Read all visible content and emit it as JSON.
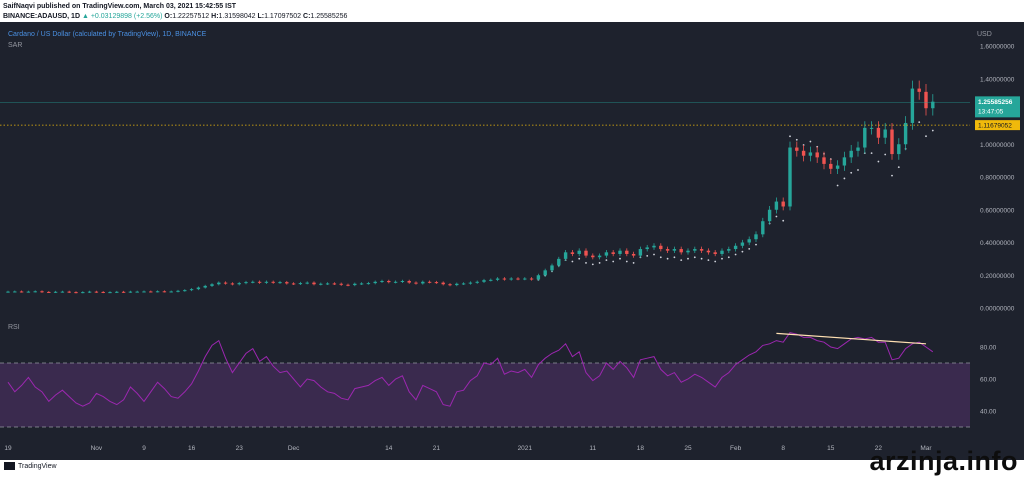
{
  "header": {
    "published_line": "SaifNaqvi published on TradingView.com, March 03, 2021 15:42:55 IST",
    "symbol_line": {
      "symbol": "BINANCE:ADAUSD, 1D",
      "change": "▲ +0.03129898 (+2.56%)",
      "open_label": "O:",
      "open": "1.22257512",
      "high_label": "H:",
      "high": "1.31598042",
      "low_label": "L:",
      "low": "1.17097502",
      "close_label": "C:",
      "close": "1.25585256"
    }
  },
  "legend": {
    "title": "Cardano / US Dollar (calculated by TradingView), 1D, BINANCE",
    "indicator": "SAR",
    "rsi_label": "RSI",
    "currency": "USD"
  },
  "colors": {
    "background": "#1e222d",
    "up": "#26a69a",
    "down": "#ef5350",
    "rsi_line": "#9c27b0",
    "rsi_fill": "#3a2a4e",
    "sar": "#d1d4dc",
    "price_label": "#26a69a",
    "dotted_level": "#f0b90b",
    "trendline": "#ffe0b2"
  },
  "badges": {
    "last_price": "1.25585256",
    "countdown": "13:47:05",
    "level_price": "1.11679052"
  },
  "chart_data": [
    {
      "type": "candlestick",
      "title": "Cardano / US Dollar (calculated by TradingView), 1D, BINANCE",
      "ylabel": "USD",
      "y_ticks": [
        "1.60000000",
        "1.40000000",
        "1.20000000",
        "1.00000000",
        "0.80000000",
        "0.60000000",
        "0.40000000",
        "0.20000000",
        "0.00000000"
      ],
      "ylim": [
        -0.04,
        1.72
      ],
      "x_ticks": [
        "19",
        "Nov",
        "9",
        "16",
        "23",
        "Dec",
        "14",
        "21",
        "2021",
        "11",
        "18",
        "25",
        "Feb",
        "8",
        "15",
        "22",
        "Mar"
      ],
      "dotted_level": 1.11679052,
      "last_close": 1.25585256,
      "series": [
        {
          "name": "ADAUSD",
          "closes": [
            0.1,
            0.101,
            0.099,
            0.1,
            0.102,
            0.098,
            0.097,
            0.099,
            0.1,
            0.097,
            0.095,
            0.097,
            0.1,
            0.098,
            0.096,
            0.097,
            0.099,
            0.098,
            0.1,
            0.1,
            0.101,
            0.1,
            0.102,
            0.1,
            0.101,
            0.105,
            0.109,
            0.115,
            0.125,
            0.135,
            0.145,
            0.155,
            0.15,
            0.145,
            0.152,
            0.158,
            0.16,
            0.155,
            0.16,
            0.155,
            0.158,
            0.15,
            0.148,
            0.152,
            0.155,
            0.145,
            0.148,
            0.15,
            0.148,
            0.142,
            0.14,
            0.148,
            0.15,
            0.152,
            0.16,
            0.165,
            0.158,
            0.16,
            0.165,
            0.155,
            0.15,
            0.16,
            0.158,
            0.155,
            0.145,
            0.14,
            0.148,
            0.15,
            0.155,
            0.16,
            0.17,
            0.172,
            0.18,
            0.175,
            0.18,
            0.178,
            0.18,
            0.175,
            0.2,
            0.23,
            0.26,
            0.3,
            0.34,
            0.33,
            0.35,
            0.32,
            0.31,
            0.32,
            0.34,
            0.33,
            0.35,
            0.33,
            0.32,
            0.36,
            0.37,
            0.38,
            0.36,
            0.35,
            0.36,
            0.34,
            0.35,
            0.36,
            0.35,
            0.34,
            0.33,
            0.35,
            0.36,
            0.38,
            0.4,
            0.42,
            0.45,
            0.53,
            0.6,
            0.65,
            0.62,
            0.98,
            0.96,
            0.93,
            0.95,
            0.92,
            0.88,
            0.85,
            0.87,
            0.92,
            0.96,
            0.98,
            1.1,
            1.1,
            1.04,
            1.09,
            0.94,
            1.0,
            1.13,
            1.34,
            1.32,
            1.22,
            1.26
          ]
        }
      ]
    },
    {
      "type": "line",
      "title": "RSI",
      "y_ticks": [
        "80.00",
        "60.00",
        "40.00"
      ],
      "ylim": [
        24,
        92
      ],
      "bands": [
        70,
        30
      ],
      "series": [
        {
          "name": "RSI",
          "values": [
            58,
            52,
            56,
            61,
            55,
            52,
            46,
            50,
            53,
            49,
            45,
            43,
            45,
            51,
            49,
            46,
            44,
            47,
            55,
            51,
            46,
            52,
            58,
            54,
            49,
            48,
            52,
            57,
            65,
            74,
            81,
            84,
            73,
            64,
            70,
            76,
            79,
            71,
            74,
            68,
            64,
            65,
            60,
            55,
            60,
            59,
            55,
            52,
            51,
            48,
            47,
            54,
            55,
            56,
            59,
            61,
            56,
            60,
            62,
            52,
            47,
            56,
            54,
            52,
            44,
            43,
            52,
            53,
            59,
            62,
            70,
            69,
            73,
            63,
            65,
            64,
            66,
            61,
            69,
            73,
            76,
            78,
            82,
            74,
            77,
            64,
            59,
            62,
            70,
            66,
            71,
            67,
            61,
            72,
            73,
            74,
            66,
            62,
            64,
            58,
            60,
            63,
            61,
            58,
            55,
            61,
            64,
            69,
            72,
            75,
            77,
            81,
            82,
            84,
            83,
            89,
            88,
            86,
            86,
            84,
            83,
            80,
            79,
            82,
            85,
            86,
            85,
            86,
            83,
            83,
            72,
            73,
            79,
            82,
            83,
            80,
            77
          ]
        }
      ],
      "trendline": [
        [
          113,
          88.5
        ],
        [
          135,
          82
        ]
      ]
    }
  ]
}
